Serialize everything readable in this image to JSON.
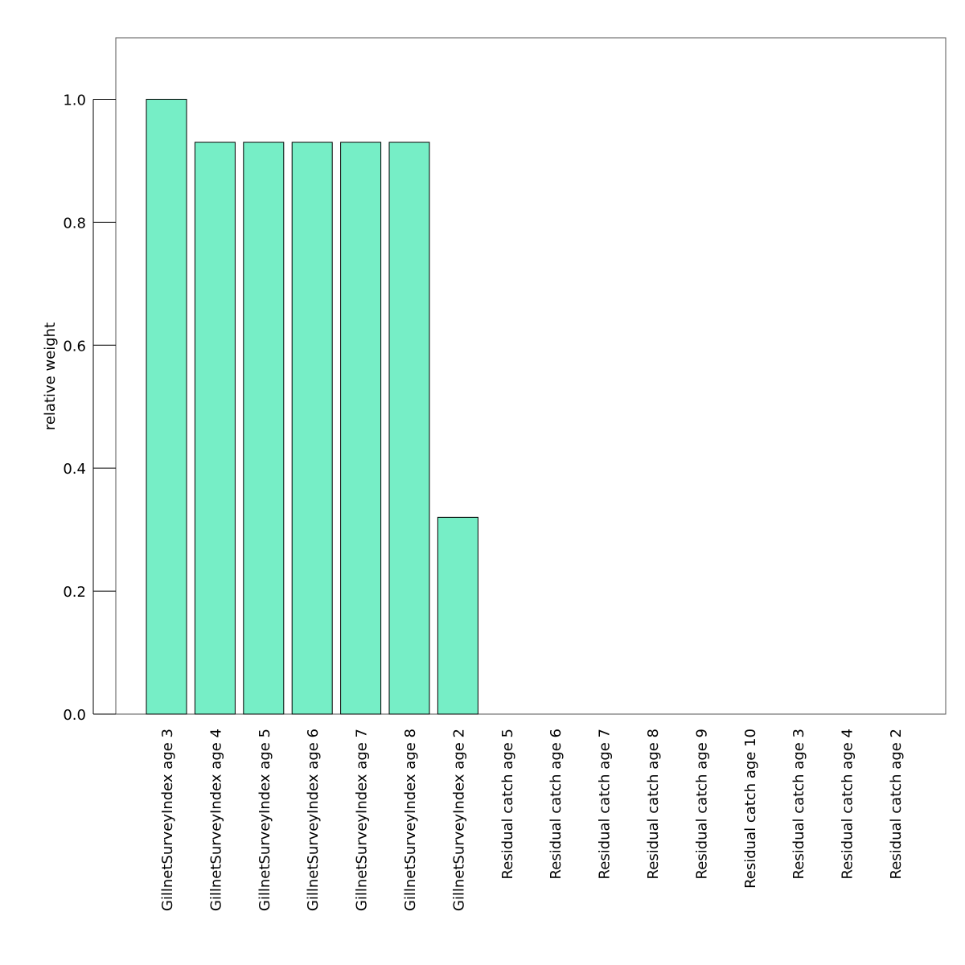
{
  "chart_data": {
    "type": "bar",
    "title": "",
    "xlabel": "",
    "ylabel": "relative weight",
    "ylim": [
      0,
      1.1
    ],
    "yticks": [
      0.0,
      0.2,
      0.4,
      0.6,
      0.8,
      1.0
    ],
    "ytick_labels": [
      "0.0",
      "0.2",
      "0.4",
      "0.6",
      "0.8",
      "1.0"
    ],
    "grid": false,
    "legend": "none",
    "bar_color": "#76eec6",
    "bar_edge_color": "#000000",
    "categories": [
      "GillnetSurveyIndex age 3",
      "GillnetSurveyIndex age 4",
      "GillnetSurveyIndex age 5",
      "GillnetSurveyIndex age 6",
      "GillnetSurveyIndex age 7",
      "GillnetSurveyIndex age 8",
      "GillnetSurveyIndex age 2",
      "Residual catch age 5",
      "Residual catch age 6",
      "Residual catch age 7",
      "Residual catch age 8",
      "Residual catch age 9",
      "Residual catch age 10",
      "Residual catch age 3",
      "Residual catch age 4",
      "Residual catch age 2"
    ],
    "values": [
      1.0,
      0.93,
      0.93,
      0.93,
      0.93,
      0.93,
      0.32,
      0,
      0,
      0,
      0,
      0,
      0,
      0,
      0,
      0
    ]
  }
}
